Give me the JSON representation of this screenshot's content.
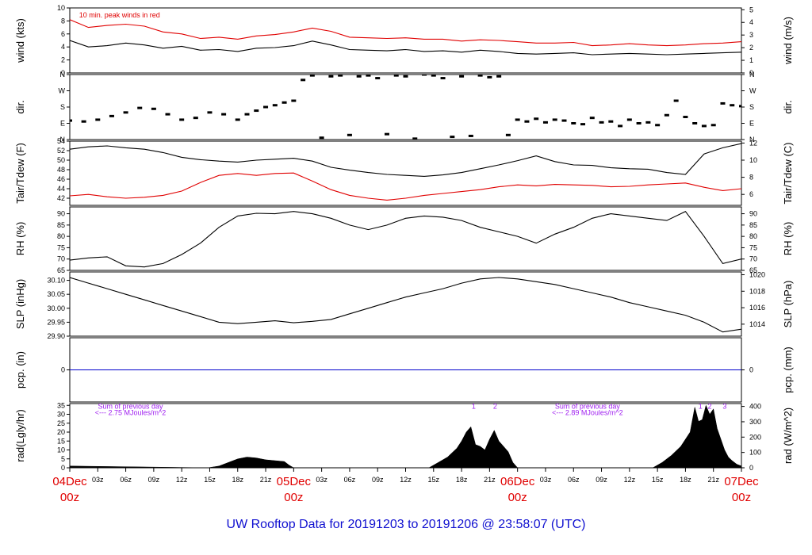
{
  "title": "UW Rooftop Data for 20191203  to  20191206 @ 23:58:07  (UTC)",
  "time_axis": {
    "hour_ticks": [
      "03z",
      "06z",
      "09z",
      "12z",
      "15z",
      "18z",
      "21z"
    ],
    "days": [
      {
        "day": "04Dec",
        "hour": "00z"
      },
      {
        "day": "05Dec",
        "hour": "00z"
      },
      {
        "day": "06Dec",
        "hour": "00z"
      },
      {
        "day": "07Dec",
        "hour": "00z"
      }
    ],
    "range_hours": [
      0,
      72
    ]
  },
  "colors": {
    "primary": "#000000",
    "secondary": "#e00000",
    "precip": "#0000cc",
    "note": "#a020f0",
    "title": "#1010d0",
    "day_label": "#e00000"
  },
  "chart_data": [
    {
      "type": "line",
      "ylabel_left": "wind (kts)",
      "ylabel_right": "wind (m/s)",
      "ylim": [
        0,
        10
      ],
      "yticks": [
        0,
        2,
        4,
        6,
        8,
        10
      ],
      "right_ticks": [
        {
          "label": "0",
          "at": 0
        },
        {
          "label": "1",
          "at": 1.944
        },
        {
          "label": "2",
          "at": 3.888
        },
        {
          "label": "3",
          "at": 5.832
        },
        {
          "label": "4",
          "at": 7.776
        },
        {
          "label": "5",
          "at": 9.72
        }
      ],
      "annotation": "10 min. peak winds in red",
      "series": [
        {
          "x": [
            0,
            2,
            4,
            6,
            8,
            10,
            12,
            14,
            16,
            18,
            20,
            22,
            24,
            26,
            28,
            30,
            32,
            34,
            36,
            38,
            40,
            42,
            44,
            46,
            48,
            50,
            52,
            54,
            56,
            58,
            60,
            62,
            64,
            66,
            68,
            70,
            72
          ],
          "values": [
            5.0,
            4.0,
            4.2,
            4.6,
            4.3,
            3.8,
            4.1,
            3.5,
            3.6,
            3.3,
            3.8,
            3.9,
            4.2,
            4.9,
            4.3,
            3.6,
            3.5,
            3.4,
            3.6,
            3.3,
            3.4,
            3.2,
            3.5,
            3.3,
            3.0,
            2.9,
            3.0,
            3.1,
            2.8,
            2.9,
            3.0,
            2.9,
            2.8,
            2.9,
            3.0,
            3.1,
            3.2
          ]
        },
        {
          "x": [
            0,
            2,
            4,
            6,
            8,
            10,
            12,
            14,
            16,
            18,
            20,
            22,
            24,
            26,
            28,
            30,
            32,
            34,
            36,
            38,
            40,
            42,
            44,
            46,
            48,
            50,
            52,
            54,
            56,
            58,
            60,
            62,
            64,
            66,
            68,
            70,
            72
          ],
          "values": [
            8.2,
            7.0,
            7.3,
            7.5,
            7.2,
            6.3,
            6.0,
            5.3,
            5.5,
            5.2,
            5.7,
            5.9,
            6.3,
            6.9,
            6.4,
            5.5,
            5.4,
            5.3,
            5.4,
            5.2,
            5.2,
            4.9,
            5.1,
            5.0,
            4.8,
            4.6,
            4.6,
            4.7,
            4.2,
            4.3,
            4.5,
            4.3,
            4.2,
            4.3,
            4.5,
            4.6,
            4.8
          ]
        }
      ]
    },
    {
      "type": "scatter",
      "ylabel_left": "dir.",
      "ylabel_right": "dir.",
      "ylim": [
        0,
        360
      ],
      "yticks": [
        {
          "label": "N",
          "at": 0
        },
        {
          "label": "E",
          "at": 90
        },
        {
          "label": "S",
          "at": 180
        },
        {
          "label": "W",
          "at": 270
        },
        {
          "label": "N",
          "at": 360
        }
      ],
      "series": [
        {
          "x": [
            0,
            1.5,
            3,
            4.5,
            6,
            7.5,
            9,
            10.5,
            12,
            13.5,
            15,
            16.5,
            18,
            19,
            20,
            21,
            22,
            23,
            24,
            25,
            26,
            27,
            28,
            29,
            30,
            31,
            32,
            33,
            34,
            35,
            36,
            37,
            38,
            39,
            40,
            41,
            42,
            43,
            44,
            45,
            46,
            47,
            48,
            49,
            50,
            51,
            52,
            53,
            54,
            55,
            56,
            57,
            58,
            59,
            60,
            61,
            62,
            63,
            64,
            65,
            66,
            67,
            68,
            69,
            70,
            71,
            72
          ],
          "values": [
            105,
            100,
            110,
            130,
            150,
            175,
            170,
            140,
            110,
            120,
            150,
            140,
            110,
            140,
            160,
            180,
            190,
            205,
            215,
            330,
            355,
            10,
            350,
            355,
            25,
            350,
            355,
            340,
            30,
            355,
            350,
            5,
            360,
            355,
            340,
            15,
            350,
            20,
            355,
            345,
            350,
            25,
            110,
            100,
            115,
            95,
            110,
            105,
            90,
            85,
            120,
            95,
            100,
            75,
            110,
            90,
            95,
            80,
            135,
            215,
            125,
            90,
            75,
            80,
            200,
            190,
            185
          ]
        }
      ]
    },
    {
      "type": "line",
      "ylabel_left": "Tair/Tdew (F)",
      "ylabel_right": "Tair/Tdew (C)",
      "ylim": [
        40.5,
        54
      ],
      "yticks": [
        42,
        44,
        46,
        48,
        50,
        52,
        54
      ],
      "right_ticks": [
        {
          "label": "6",
          "at": 42.8
        },
        {
          "label": "8",
          "at": 46.4
        },
        {
          "label": "10",
          "at": 50
        },
        {
          "label": "12",
          "at": 53.6
        }
      ],
      "series": [
        {
          "x": [
            0,
            2,
            4,
            6,
            8,
            10,
            12,
            14,
            16,
            18,
            20,
            22,
            24,
            26,
            28,
            30,
            32,
            34,
            36,
            38,
            40,
            42,
            44,
            46,
            48,
            50,
            52,
            54,
            56,
            58,
            60,
            62,
            64,
            66,
            68,
            70,
            72
          ],
          "values": [
            52.3,
            52.8,
            53.0,
            52.6,
            52.3,
            51.6,
            50.6,
            50.1,
            49.8,
            49.6,
            50.0,
            50.2,
            50.4,
            49.8,
            48.5,
            47.9,
            47.4,
            47.0,
            46.8,
            46.6,
            46.9,
            47.4,
            48.2,
            49.0,
            49.9,
            50.9,
            49.7,
            49.0,
            48.9,
            48.4,
            48.2,
            48.1,
            47.4,
            47.0,
            51.3,
            52.6,
            53.5
          ]
        },
        {
          "x": [
            0,
            2,
            4,
            6,
            8,
            10,
            12,
            14,
            16,
            18,
            20,
            22,
            24,
            26,
            28,
            30,
            32,
            34,
            36,
            38,
            40,
            42,
            44,
            46,
            48,
            50,
            52,
            54,
            56,
            58,
            60,
            62,
            64,
            66,
            68,
            70,
            72
          ],
          "values": [
            42.5,
            42.8,
            42.3,
            42.0,
            42.2,
            42.6,
            43.5,
            45.3,
            46.8,
            47.2,
            46.8,
            47.2,
            47.3,
            45.6,
            43.8,
            42.6,
            42.0,
            41.6,
            42.0,
            42.6,
            43.0,
            43.4,
            43.8,
            44.4,
            44.8,
            44.6,
            44.9,
            44.8,
            44.7,
            44.4,
            44.5,
            44.8,
            45.0,
            45.2,
            44.3,
            43.6,
            44.0
          ]
        }
      ]
    },
    {
      "type": "line",
      "ylabel_left": "RH (%)",
      "ylabel_right": "RH (%)",
      "ylim": [
        65,
        93
      ],
      "yticks": [
        65,
        70,
        75,
        80,
        85,
        90
      ],
      "series": [
        {
          "x": [
            0,
            2,
            4,
            6,
            8,
            10,
            12,
            14,
            16,
            18,
            20,
            22,
            24,
            26,
            28,
            30,
            32,
            34,
            36,
            38,
            40,
            42,
            44,
            46,
            48,
            50,
            52,
            54,
            56,
            58,
            60,
            62,
            64,
            66,
            68,
            70,
            72
          ],
          "values": [
            69.5,
            70.5,
            71,
            67,
            66.5,
            68,
            72,
            77,
            84,
            89,
            90.2,
            90,
            91,
            90,
            88,
            85,
            83,
            85,
            88,
            89,
            88.5,
            87,
            84,
            82,
            80,
            77,
            81,
            84,
            88,
            90,
            89,
            88,
            87,
            91,
            80,
            68,
            70
          ]
        }
      ]
    },
    {
      "type": "line",
      "ylabel_left": "SLP (inHg)",
      "ylabel_right": "SLP (hPa)",
      "ylim": [
        29.9,
        30.13
      ],
      "yticks": [
        29.9,
        29.95,
        30.0,
        30.05,
        30.1
      ],
      "right_ticks": [
        {
          "label": "1014",
          "at": 29.943
        },
        {
          "label": "1016",
          "at": 30.002
        },
        {
          "label": "1018",
          "at": 30.061
        },
        {
          "label": "1020",
          "at": 30.12
        }
      ],
      "series": [
        {
          "x": [
            0,
            2,
            4,
            6,
            8,
            10,
            12,
            14,
            16,
            18,
            20,
            22,
            24,
            26,
            28,
            30,
            32,
            34,
            36,
            38,
            40,
            42,
            44,
            46,
            48,
            50,
            52,
            54,
            56,
            58,
            60,
            62,
            64,
            66,
            68,
            70,
            72
          ],
          "values": [
            30.11,
            30.09,
            30.07,
            30.05,
            30.03,
            30.01,
            29.99,
            29.97,
            29.95,
            29.945,
            29.95,
            29.955,
            29.948,
            29.953,
            29.96,
            29.98,
            30.0,
            30.02,
            30.04,
            30.055,
            30.07,
            30.09,
            30.105,
            30.11,
            30.105,
            30.095,
            30.085,
            30.07,
            30.055,
            30.04,
            30.02,
            30.005,
            29.99,
            29.975,
            29.95,
            29.915,
            29.925
          ]
        }
      ]
    },
    {
      "type": "line",
      "ylabel_left": "pcp. (in)",
      "ylabel_right": "pcp. (mm)",
      "ylim": [
        -1,
        1
      ],
      "yticks": [
        0
      ],
      "right_ticks": [
        {
          "label": "0",
          "at": 0
        }
      ],
      "series": [
        {
          "x": [
            0,
            72
          ],
          "values": [
            0,
            0
          ]
        }
      ]
    },
    {
      "type": "area",
      "ylabel_left": "rad(Lgly/hr)",
      "ylabel_right": "rad (W/m^2)",
      "ylim": [
        0,
        36
      ],
      "yticks": [
        0,
        5,
        10,
        15,
        20,
        25,
        30,
        35
      ],
      "right_ticks": [
        {
          "label": "0",
          "at": 0
        },
        {
          "label": "100",
          "at": 8.6
        },
        {
          "label": "200",
          "at": 17.2
        },
        {
          "label": "300",
          "at": 25.8
        },
        {
          "label": "400",
          "at": 34.4
        }
      ],
      "annotations": [
        {
          "text": "Sum of previous day",
          "x": 6.5,
          "y": 34.5
        },
        {
          "text": "<--- 2.75 MJoules/m^2",
          "x": 6.5,
          "y": 31
        },
        {
          "text": "Sum of previous day",
          "x": 55.5,
          "y": 34.5
        },
        {
          "text": "<--- 2.89 MJoules/m^2",
          "x": 55.5,
          "y": 31
        },
        {
          "text": "1",
          "x": 43.3,
          "y": 34.5
        },
        {
          "text": "2",
          "x": 45.6,
          "y": 34.5
        },
        {
          "text": "1",
          "x": 67.6,
          "y": 34.5
        },
        {
          "text": "2",
          "x": 68.6,
          "y": 34.5
        },
        {
          "text": "3",
          "x": 70.2,
          "y": 34.5
        }
      ],
      "series": [
        {
          "x": [
            0,
            14.8,
            16,
            17,
            18,
            19,
            20,
            21,
            22,
            23,
            23.5,
            24,
            38.5,
            39.5,
            40.5,
            41.5,
            42,
            42.5,
            43,
            43.5,
            44,
            44.5,
            45,
            45.5,
            46,
            46.5,
            47,
            47.5,
            48,
            62.5,
            63.5,
            64.5,
            65.5,
            66.5,
            67,
            67.4,
            67.8,
            68.2,
            68.6,
            69,
            69.4,
            69.8,
            70.2,
            70.6,
            71,
            71.5,
            72
          ],
          "values": [
            1,
            0,
            1,
            3,
            5,
            6,
            5.5,
            4.5,
            4,
            3.5,
            1.5,
            0,
            0,
            3,
            6,
            11,
            15,
            20,
            23,
            13,
            12,
            10,
            16,
            21,
            15,
            12,
            9,
            3,
            0,
            0,
            3,
            7,
            12,
            20,
            34,
            26,
            27,
            35,
            30,
            33,
            22,
            16,
            10,
            6,
            4,
            2,
            1
          ]
        }
      ]
    }
  ]
}
